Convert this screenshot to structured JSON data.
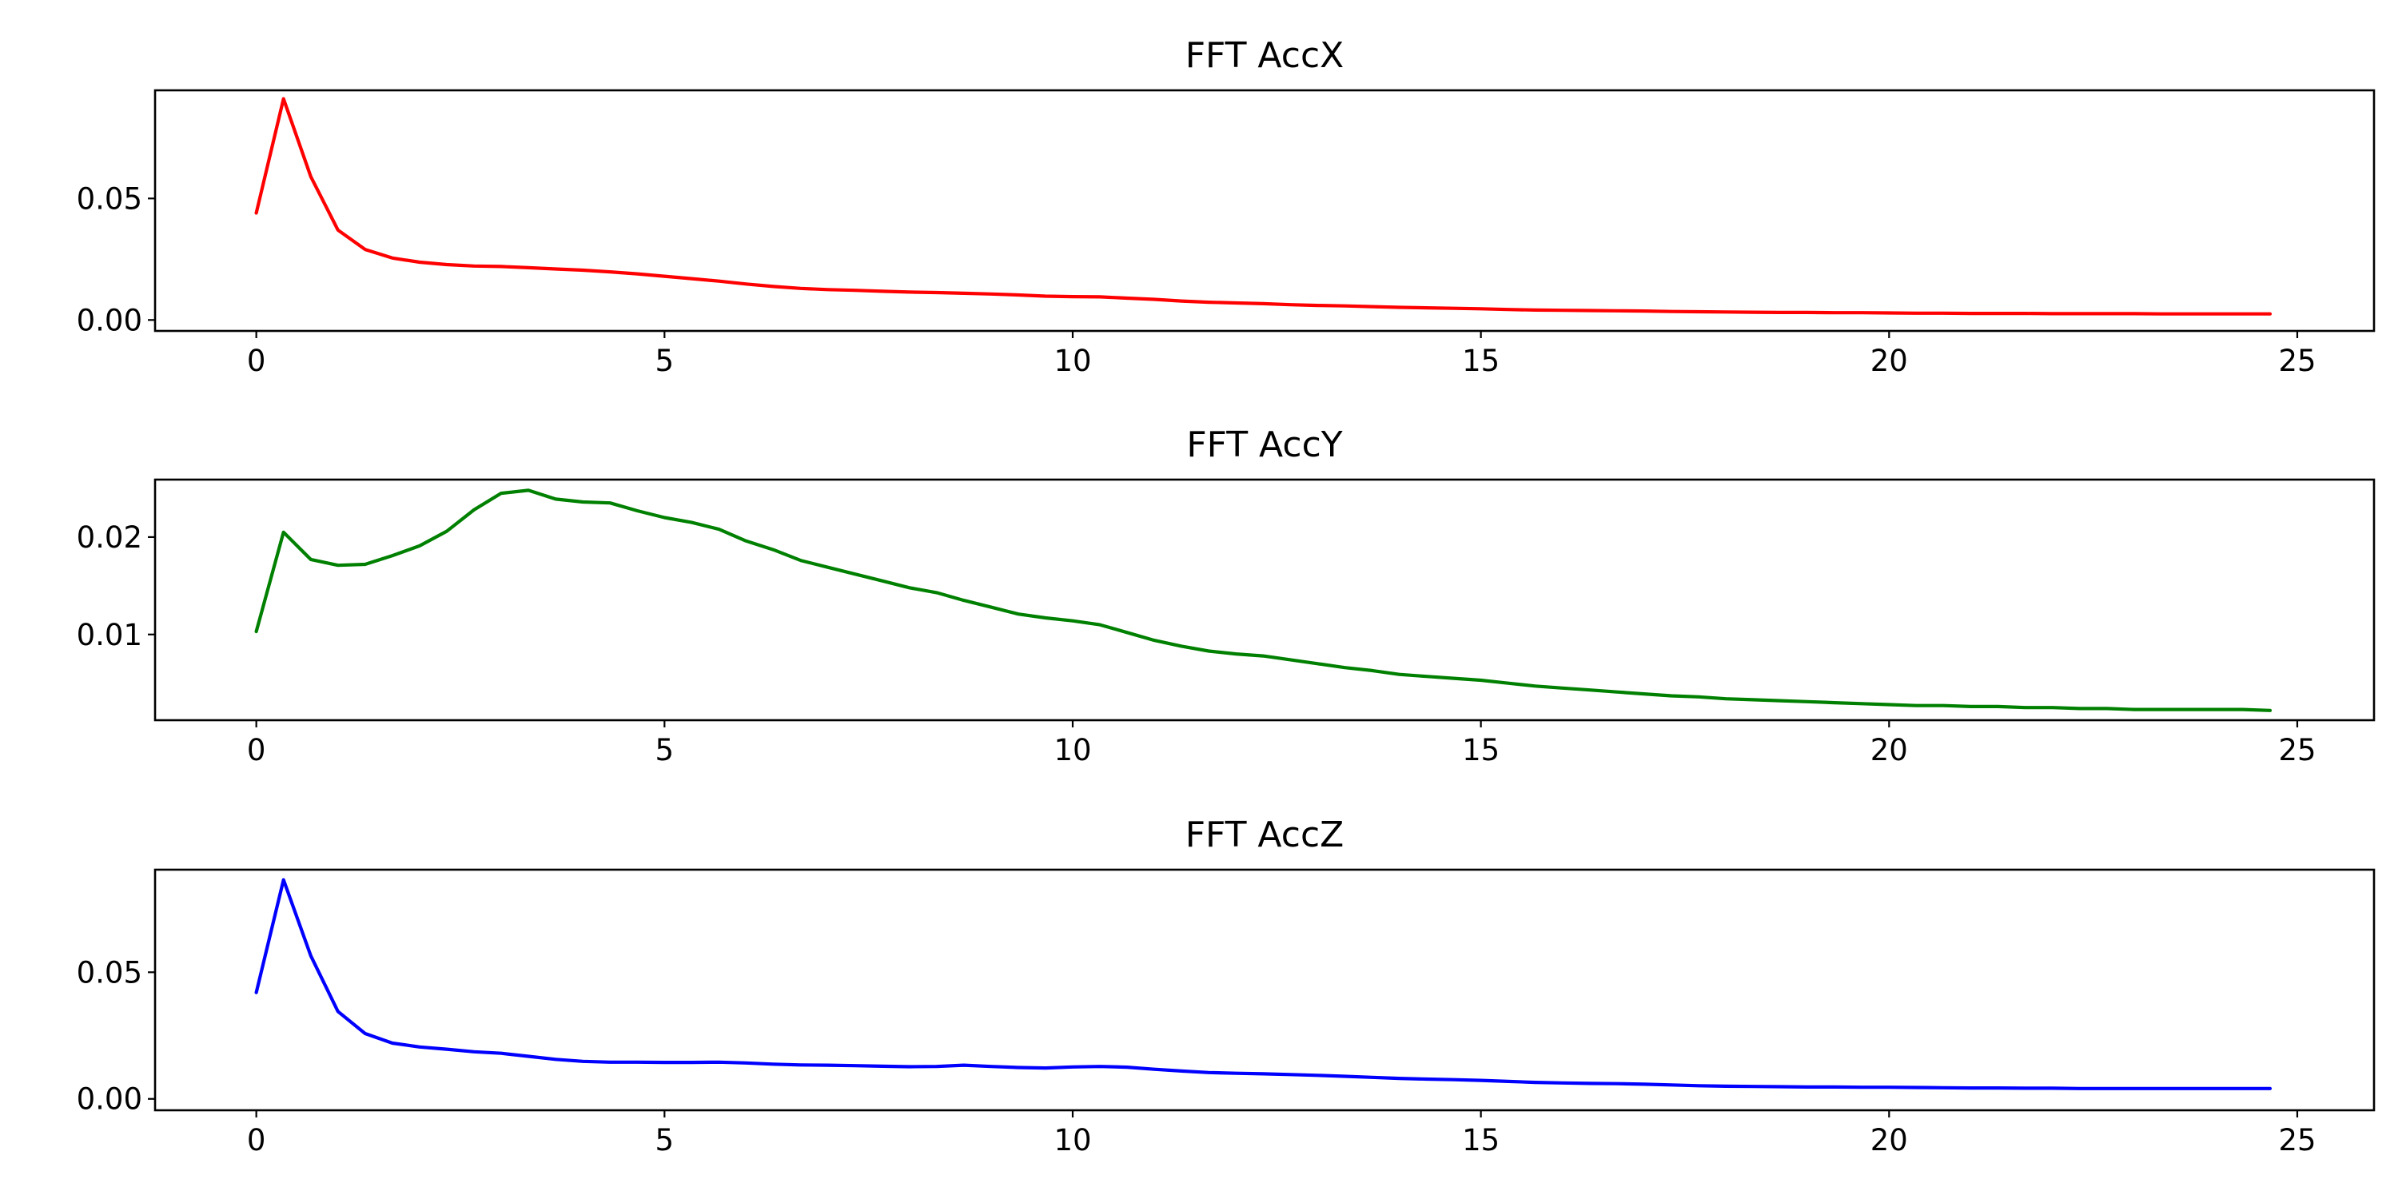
{
  "chart_data": [
    {
      "type": "line",
      "title": "FFT AccX",
      "color": "#ff0000",
      "xlim": [
        -1.24,
        25.94
      ],
      "ylim": [
        -0.0045,
        0.0945
      ],
      "xticks": [
        0,
        5,
        10,
        15,
        20,
        25
      ],
      "xtick_labels": [
        "0",
        "5",
        "10",
        "15",
        "20",
        "25"
      ],
      "yticks": [
        0.0,
        0.05
      ],
      "ytick_labels": [
        "0.00",
        "0.05"
      ],
      "x": [
        0,
        0.333,
        0.667,
        1.0,
        1.333,
        1.667,
        2.0,
        2.333,
        2.667,
        3.0,
        3.333,
        3.667,
        4.0,
        4.333,
        4.667,
        5.0,
        5.333,
        5.667,
        6.0,
        6.333,
        6.667,
        7.0,
        7.333,
        7.667,
        8.0,
        8.333,
        8.667,
        9.0,
        9.333,
        9.667,
        10.0,
        10.333,
        10.667,
        11.0,
        11.333,
        11.667,
        12.0,
        12.333,
        12.667,
        13.0,
        13.333,
        13.667,
        14.0,
        14.333,
        14.667,
        15.0,
        15.333,
        15.667,
        16.0,
        16.333,
        16.667,
        17.0,
        17.333,
        17.667,
        18.0,
        18.333,
        18.667,
        19.0,
        19.333,
        19.667,
        20.0,
        20.333,
        20.667,
        21.0,
        21.333,
        21.667,
        22.0,
        22.333,
        22.667,
        23.0,
        23.333,
        23.667,
        24.0,
        24.333,
        24.667
      ],
      "y": [
        0.044,
        0.091,
        0.059,
        0.037,
        0.029,
        0.0255,
        0.0238,
        0.0228,
        0.0222,
        0.022,
        0.0215,
        0.021,
        0.0205,
        0.0198,
        0.019,
        0.018,
        0.017,
        0.016,
        0.0148,
        0.0138,
        0.013,
        0.0125,
        0.0122,
        0.0118,
        0.0115,
        0.0113,
        0.011,
        0.0107,
        0.0103,
        0.0098,
        0.0096,
        0.0095,
        0.009,
        0.0085,
        0.0078,
        0.0073,
        0.007,
        0.0067,
        0.0063,
        0.006,
        0.0058,
        0.0055,
        0.0052,
        0.005,
        0.0048,
        0.0046,
        0.0043,
        0.0041,
        0.004,
        0.0039,
        0.0038,
        0.0037,
        0.0035,
        0.0034,
        0.0033,
        0.0032,
        0.0031,
        0.0031,
        0.003,
        0.003,
        0.0029,
        0.0028,
        0.0028,
        0.0027,
        0.0027,
        0.0027,
        0.0026,
        0.0026,
        0.0026,
        0.0026,
        0.0025,
        0.0025,
        0.0025,
        0.0025,
        0.0025
      ]
    },
    {
      "type": "line",
      "title": "FFT AccY",
      "color": "#008000",
      "xlim": [
        -1.24,
        25.94
      ],
      "ylim": [
        0.0012,
        0.0259
      ],
      "xticks": [
        0,
        5,
        10,
        15,
        20,
        25
      ],
      "xtick_labels": [
        "0",
        "5",
        "10",
        "15",
        "20",
        "25"
      ],
      "yticks": [
        0.01,
        0.02
      ],
      "ytick_labels": [
        "0.01",
        "0.02"
      ],
      "x": [
        0,
        0.333,
        0.667,
        1.0,
        1.333,
        1.667,
        2.0,
        2.333,
        2.667,
        3.0,
        3.333,
        3.667,
        4.0,
        4.333,
        4.667,
        5.0,
        5.333,
        5.667,
        6.0,
        6.333,
        6.667,
        7.0,
        7.333,
        7.667,
        8.0,
        8.333,
        8.667,
        9.0,
        9.333,
        9.667,
        10.0,
        10.333,
        10.667,
        11.0,
        11.333,
        11.667,
        12.0,
        12.333,
        12.667,
        13.0,
        13.333,
        13.667,
        14.0,
        14.333,
        14.667,
        15.0,
        15.333,
        15.667,
        16.0,
        16.333,
        16.667,
        17.0,
        17.333,
        17.667,
        18.0,
        18.333,
        18.667,
        19.0,
        19.333,
        19.667,
        20.0,
        20.333,
        20.667,
        21.0,
        21.333,
        21.667,
        22.0,
        22.333,
        22.667,
        23.0,
        23.333,
        23.667,
        24.0,
        24.333,
        24.667
      ],
      "y": [
        0.0103,
        0.0205,
        0.0177,
        0.0171,
        0.0172,
        0.0181,
        0.0191,
        0.0206,
        0.0228,
        0.0245,
        0.0248,
        0.0239,
        0.0236,
        0.0235,
        0.0227,
        0.022,
        0.0215,
        0.0208,
        0.0196,
        0.0187,
        0.0176,
        0.0169,
        0.0162,
        0.0155,
        0.0148,
        0.0143,
        0.0135,
        0.0128,
        0.0121,
        0.0117,
        0.0114,
        0.011,
        0.0102,
        0.0094,
        0.0088,
        0.0083,
        0.008,
        0.0078,
        0.0074,
        0.007,
        0.0066,
        0.0063,
        0.0059,
        0.0057,
        0.0055,
        0.0053,
        0.005,
        0.0047,
        0.0045,
        0.0043,
        0.0041,
        0.0039,
        0.0037,
        0.0036,
        0.0034,
        0.0033,
        0.0032,
        0.0031,
        0.003,
        0.0029,
        0.0028,
        0.0027,
        0.0027,
        0.0026,
        0.0026,
        0.0025,
        0.0025,
        0.0024,
        0.0024,
        0.0023,
        0.0023,
        0.0023,
        0.0023,
        0.0023,
        0.0022
      ]
    },
    {
      "type": "line",
      "title": "FFT AccZ",
      "color": "#0000ff",
      "xlim": [
        -1.24,
        25.94
      ],
      "ylim": [
        -0.0045,
        0.0905
      ],
      "xticks": [
        0,
        5,
        10,
        15,
        20,
        25
      ],
      "xtick_labels": [
        "0",
        "5",
        "10",
        "15",
        "20",
        "25"
      ],
      "yticks": [
        0.0,
        0.05
      ],
      "ytick_labels": [
        "0.00",
        "0.05"
      ],
      "x": [
        0,
        0.333,
        0.667,
        1.0,
        1.333,
        1.667,
        2.0,
        2.333,
        2.667,
        3.0,
        3.333,
        3.667,
        4.0,
        4.333,
        4.667,
        5.0,
        5.333,
        5.667,
        6.0,
        6.333,
        6.667,
        7.0,
        7.333,
        7.667,
        8.0,
        8.333,
        8.667,
        9.0,
        9.333,
        9.667,
        10.0,
        10.333,
        10.667,
        11.0,
        11.333,
        11.667,
        12.0,
        12.333,
        12.667,
        13.0,
        13.333,
        13.667,
        14.0,
        14.333,
        14.667,
        15.0,
        15.333,
        15.667,
        16.0,
        16.333,
        16.667,
        17.0,
        17.333,
        17.667,
        18.0,
        18.333,
        18.667,
        19.0,
        19.333,
        19.667,
        20.0,
        20.333,
        20.667,
        21.0,
        21.333,
        21.667,
        22.0,
        22.333,
        22.667,
        23.0,
        23.333,
        23.667,
        24.0,
        24.333,
        24.667
      ],
      "y": [
        0.042,
        0.0865,
        0.0565,
        0.0345,
        0.0258,
        0.022,
        0.0205,
        0.0196,
        0.0186,
        0.018,
        0.0168,
        0.0156,
        0.0148,
        0.0145,
        0.0145,
        0.0144,
        0.0144,
        0.0145,
        0.0142,
        0.0137,
        0.0134,
        0.0133,
        0.0131,
        0.0129,
        0.0127,
        0.0128,
        0.0133,
        0.0128,
        0.0124,
        0.0122,
        0.0126,
        0.0128,
        0.0125,
        0.0117,
        0.011,
        0.0104,
        0.0101,
        0.0099,
        0.0096,
        0.0093,
        0.0089,
        0.0085,
        0.0081,
        0.0078,
        0.0076,
        0.0073,
        0.0069,
        0.0065,
        0.0063,
        0.0061,
        0.006,
        0.0058,
        0.0055,
        0.0052,
        0.005,
        0.0049,
        0.0048,
        0.0047,
        0.0047,
        0.0046,
        0.0046,
        0.0045,
        0.0044,
        0.0043,
        0.0043,
        0.0042,
        0.0042,
        0.0041,
        0.0041,
        0.0041,
        0.0041,
        0.0041,
        0.0041,
        0.0041,
        0.0041
      ]
    }
  ]
}
